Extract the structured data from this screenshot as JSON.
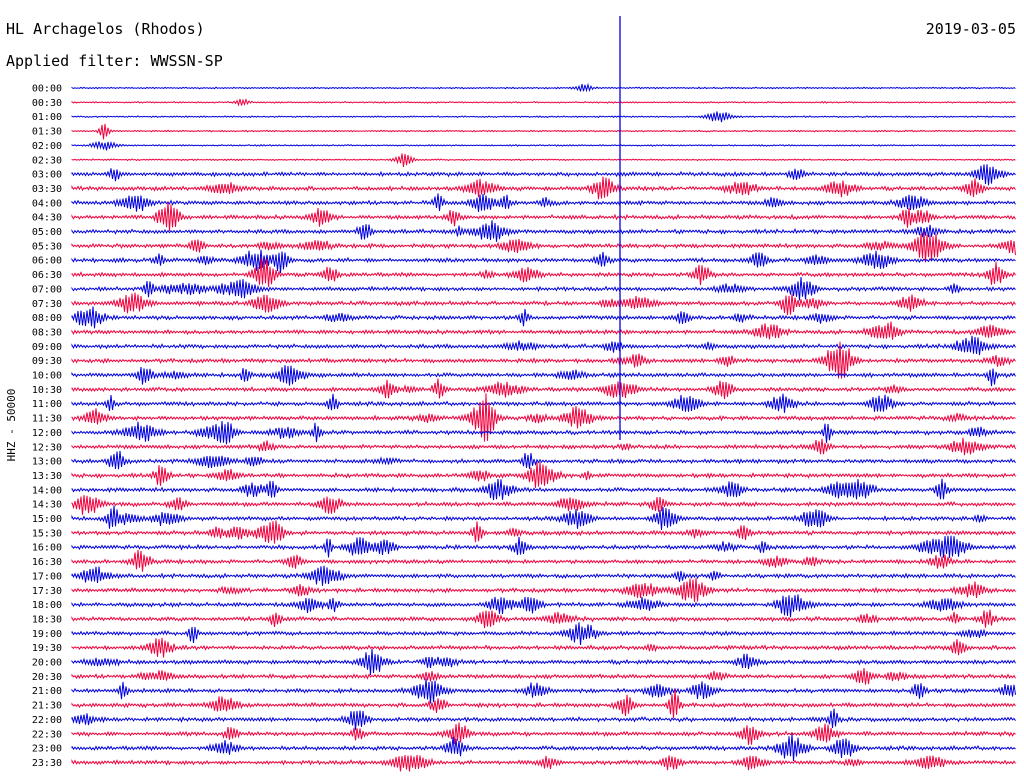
{
  "header": {
    "station": "HL Archagelos (Rhodos)",
    "filter": "Applied filter: WWSSN-SP",
    "date": "2019-03-05"
  },
  "chart_data": {
    "type": "helicorder",
    "y_axis_label": "HHZ - 50000",
    "colors": [
      "#0000e0",
      "#f0003c"
    ],
    "rows": [
      {
        "label": "00:00"
      },
      {
        "label": "00:30"
      },
      {
        "label": "01:00"
      },
      {
        "label": "01:30"
      },
      {
        "label": "02:00"
      },
      {
        "label": "02:30"
      },
      {
        "label": "03:00"
      },
      {
        "label": "03:30"
      },
      {
        "label": "04:00"
      },
      {
        "label": "04:30"
      },
      {
        "label": "05:00"
      },
      {
        "label": "05:30"
      },
      {
        "label": "06:00"
      },
      {
        "label": "06:30"
      },
      {
        "label": "07:00"
      },
      {
        "label": "07:30"
      },
      {
        "label": "08:00"
      },
      {
        "label": "08:30"
      },
      {
        "label": "09:00"
      },
      {
        "label": "09:30"
      },
      {
        "label": "10:00"
      },
      {
        "label": "10:30"
      },
      {
        "label": "11:00"
      },
      {
        "label": "11:30"
      },
      {
        "label": "12:00"
      },
      {
        "label": "12:30"
      },
      {
        "label": "13:00"
      },
      {
        "label": "13:30"
      },
      {
        "label": "14:00"
      },
      {
        "label": "14:30"
      },
      {
        "label": "15:00"
      },
      {
        "label": "15:30"
      },
      {
        "label": "16:00"
      },
      {
        "label": "16:30"
      },
      {
        "label": "17:00"
      },
      {
        "label": "17:30"
      },
      {
        "label": "18:00"
      },
      {
        "label": "18:30"
      },
      {
        "label": "19:00"
      },
      {
        "label": "19:30"
      },
      {
        "label": "20:00"
      },
      {
        "label": "20:30"
      },
      {
        "label": "21:00"
      },
      {
        "label": "21:30"
      },
      {
        "label": "22:00"
      },
      {
        "label": "22:30"
      },
      {
        "label": "23:00"
      },
      {
        "label": "23:30"
      }
    ]
  }
}
